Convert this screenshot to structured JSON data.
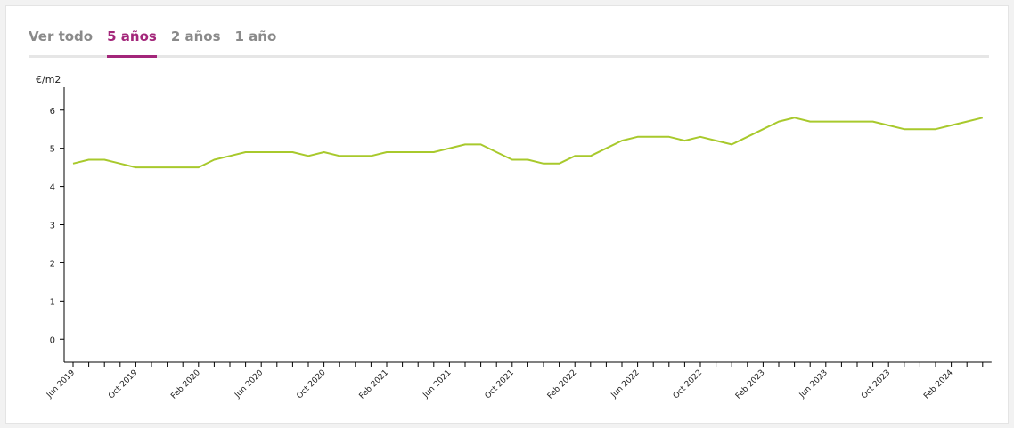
{
  "tabs": [
    {
      "label": "Ver todo",
      "active": false
    },
    {
      "label": "5 años",
      "active": true
    },
    {
      "label": "2 años",
      "active": false
    },
    {
      "label": "1 año",
      "active": false
    }
  ],
  "colors": {
    "accent": "#a3267a",
    "line": "#a8c92c",
    "tab_inactive": "#8a8a8a"
  },
  "chart_data": {
    "type": "line",
    "ylabel": "€/m2",
    "ylim": [
      -0.6,
      6.6
    ],
    "yticks": [
      0,
      1,
      2,
      3,
      4,
      5,
      6
    ],
    "x_tick_labels": [
      "Jun 2019",
      "Oct 2019",
      "Feb 2020",
      "Jun 2020",
      "Oct 2020",
      "Feb 2021",
      "Jun 2021",
      "Oct 2021",
      "Feb 2022",
      "Jun 2022",
      "Oct 2022",
      "Feb 2023",
      "Jun 2023",
      "Oct 2023",
      "Feb 2024"
    ],
    "x_start": "Jun 2019",
    "series": [
      {
        "values": [
          4.6,
          4.7,
          4.7,
          4.6,
          4.5,
          4.5,
          4.5,
          4.5,
          4.5,
          4.7,
          4.8,
          4.9,
          4.9,
          4.9,
          4.9,
          4.8,
          4.9,
          4.8,
          4.8,
          4.8,
          4.9,
          4.9,
          4.9,
          4.9,
          5.0,
          5.1,
          5.1,
          4.9,
          4.7,
          4.7,
          4.6,
          4.6,
          4.8,
          4.8,
          5.0,
          5.2,
          5.3,
          5.3,
          5.3,
          5.2,
          5.3,
          5.2,
          5.1,
          5.3,
          5.5,
          5.7,
          5.8,
          5.7,
          5.7,
          5.7,
          5.7,
          5.7,
          5.6,
          5.5,
          5.5,
          5.5,
          5.6,
          5.7,
          5.8
        ]
      }
    ]
  }
}
